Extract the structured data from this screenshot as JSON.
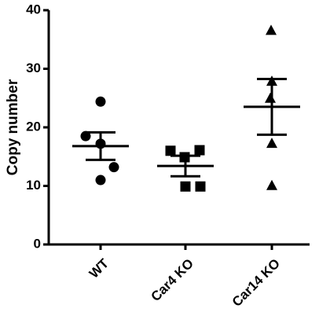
{
  "chart_data": {
    "type": "scatter",
    "y_label": "Copy number",
    "categories": [
      "WT",
      "Car4 KO",
      "Car14 KO"
    ],
    "markers": [
      "circle",
      "square",
      "triangle"
    ],
    "points": [
      [
        24.4,
        18.5,
        17.2,
        13.2,
        11.0
      ],
      [
        16.0,
        16.1,
        14.9,
        9.9,
        9.9
      ],
      [
        36.6,
        27.9,
        25.0,
        17.3,
        10.1
      ]
    ],
    "means": [
      16.8,
      13.4,
      23.5
    ],
    "sem": [
      2.35,
      1.75,
      4.75
    ],
    "color": "#000000",
    "ylim": [
      0,
      40
    ],
    "yticks": [
      0,
      10,
      20,
      30,
      40
    ]
  }
}
